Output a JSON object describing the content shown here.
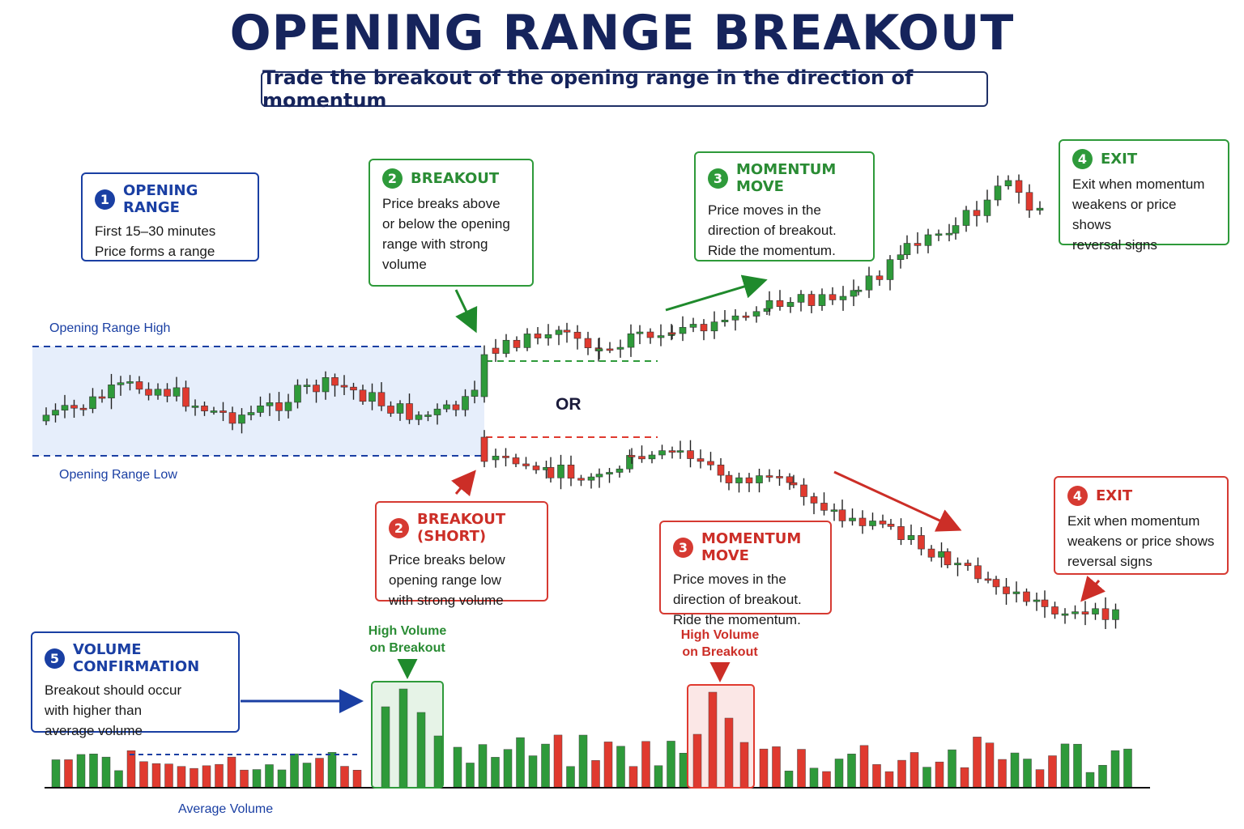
{
  "title": "OPENING RANGE BREAKOUT",
  "subtitle": "Trade the breakout of the opening range in the direction of momentum",
  "colors": {
    "up": "#2e9a3a",
    "down": "#e03a2f",
    "navy": "#16245c",
    "blue": "#1a3fa3",
    "range_fill": "#e6eefb"
  },
  "labels": {
    "range_high": "Opening Range High",
    "range_low": "Opening Range Low",
    "or": "OR",
    "avg_volume": "Average Volume",
    "hv_green": "High Volume\non Breakout",
    "hv_red": "High Volume\non Breakout"
  },
  "boxes": {
    "opening_range": {
      "num": "1",
      "title": "OPENING RANGE",
      "body": "First 15–30 minutes\nPrice forms a range"
    },
    "breakout": {
      "num": "2",
      "title": "BREAKOUT",
      "body": "Price breaks above\nor below the opening\nrange with strong\nvolume"
    },
    "momentum_up": {
      "num": "3",
      "title": "MOMENTUM MOVE",
      "body": "Price moves in the\ndirection of breakout.\nRide the momentum."
    },
    "exit_up": {
      "num": "4",
      "title": "EXIT",
      "body": "Exit when momentum\nweakens or price shows\nreversal signs"
    },
    "breakout_short": {
      "num": "2",
      "title": "BREAKOUT (SHORT)",
      "body": "Price breaks below\nopening range low\nwith strong volume"
    },
    "momentum_down": {
      "num": "3",
      "title": "MOMENTUM MOVE",
      "body": "Price moves in the\ndirection of breakout.\nRide the momentum."
    },
    "exit_down": {
      "num": "4",
      "title": "EXIT",
      "body": "Exit when momentum\nweakens or price shows\nreversal signs"
    },
    "volume": {
      "num": "5",
      "title": "VOLUME CONFIRMATION",
      "body": "Breakout should occur\nwith higher than\naverage volume"
    }
  }
}
